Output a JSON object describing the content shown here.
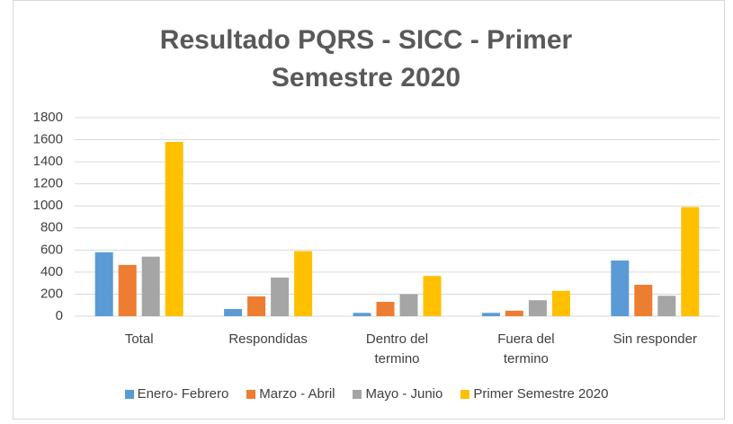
{
  "chart_data": {
    "type": "bar",
    "title": "Resultado PQRS - SICC - Primer Semestre 2020",
    "categories": [
      "Total",
      "Respondidas",
      "Dentro del termino",
      "Fuera del termino",
      "Sin responder"
    ],
    "series": [
      {
        "name": "Enero- Febrero",
        "color": "#5b9bd5",
        "values": [
          580,
          65,
          30,
          30,
          505
        ]
      },
      {
        "name": "Marzo - Abril",
        "color": "#ed7d31",
        "values": [
          465,
          180,
          130,
          50,
          285
        ]
      },
      {
        "name": "Mayo - Junio",
        "color": "#a5a5a5",
        "values": [
          540,
          350,
          200,
          145,
          185
        ]
      },
      {
        "name": "Primer Semestre 2020",
        "color": "#ffc000",
        "values": [
          1580,
          590,
          365,
          230,
          990
        ]
      }
    ],
    "ylim": [
      0,
      1800
    ],
    "yticks": [
      0,
      200,
      400,
      600,
      800,
      1000,
      1200,
      1400,
      1600,
      1800
    ],
    "grid": true,
    "legend": "bottom"
  }
}
